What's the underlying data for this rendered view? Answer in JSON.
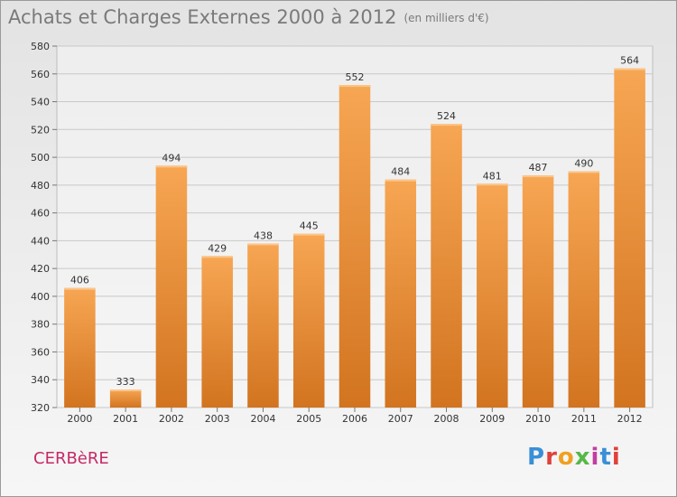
{
  "header": {
    "title": "Achats et Charges Externes 2000 à 2012",
    "unit": "(en milliers d'€)"
  },
  "commune": "CERBèRE",
  "logo": {
    "text": "Proxiti",
    "colors": [
      "#3a8fd6",
      "#e0413a",
      "#f0a020",
      "#56b848",
      "#c03fa0",
      "#3a8fd6",
      "#e0413a"
    ]
  },
  "chart_data": {
    "type": "bar",
    "categories": [
      "2000",
      "2001",
      "2002",
      "2003",
      "2004",
      "2005",
      "2006",
      "2007",
      "2008",
      "2009",
      "2010",
      "2011",
      "2012"
    ],
    "values": [
      406,
      333,
      494,
      429,
      438,
      445,
      552,
      484,
      524,
      481,
      487,
      490,
      564
    ],
    "title": "Achats et Charges Externes 2000 à 2012",
    "xlabel": "",
    "ylabel": "",
    "ylim": [
      320,
      580
    ],
    "yticks": [
      320,
      340,
      360,
      380,
      400,
      420,
      440,
      460,
      480,
      500,
      520,
      540,
      560,
      580
    ],
    "grid": true,
    "bar_color_top": "#f7a653",
    "bar_color_bottom": "#d27420"
  }
}
